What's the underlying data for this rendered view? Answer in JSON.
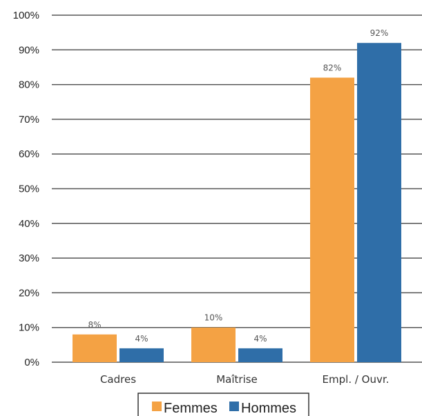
{
  "chart_data": {
    "type": "bar",
    "categories": [
      "Cadres",
      "Maîtrise",
      "Empl. / Ouvr."
    ],
    "series": [
      {
        "name": "Femmes",
        "values": [
          8,
          10,
          82
        ],
        "labels": [
          "8%",
          "10%",
          "82%"
        ],
        "color": "#F4A244"
      },
      {
        "name": "Hommes",
        "values": [
          4,
          4,
          92
        ],
        "labels": [
          "4%",
          "4%",
          "92%"
        ],
        "color": "#2F6EA8"
      }
    ],
    "ylim": [
      0,
      100
    ],
    "yticks": [
      0,
      10,
      20,
      30,
      40,
      50,
      60,
      70,
      80,
      90,
      100
    ],
    "ytick_labels": [
      "0%",
      "10%",
      "20%",
      "30%",
      "40%",
      "50%",
      "60%",
      "70%",
      "80%",
      "90%",
      "100%"
    ],
    "grid": true,
    "grid_color": "#555555",
    "legend_position": "bottom",
    "title": "",
    "xlabel": "",
    "ylabel": ""
  }
}
